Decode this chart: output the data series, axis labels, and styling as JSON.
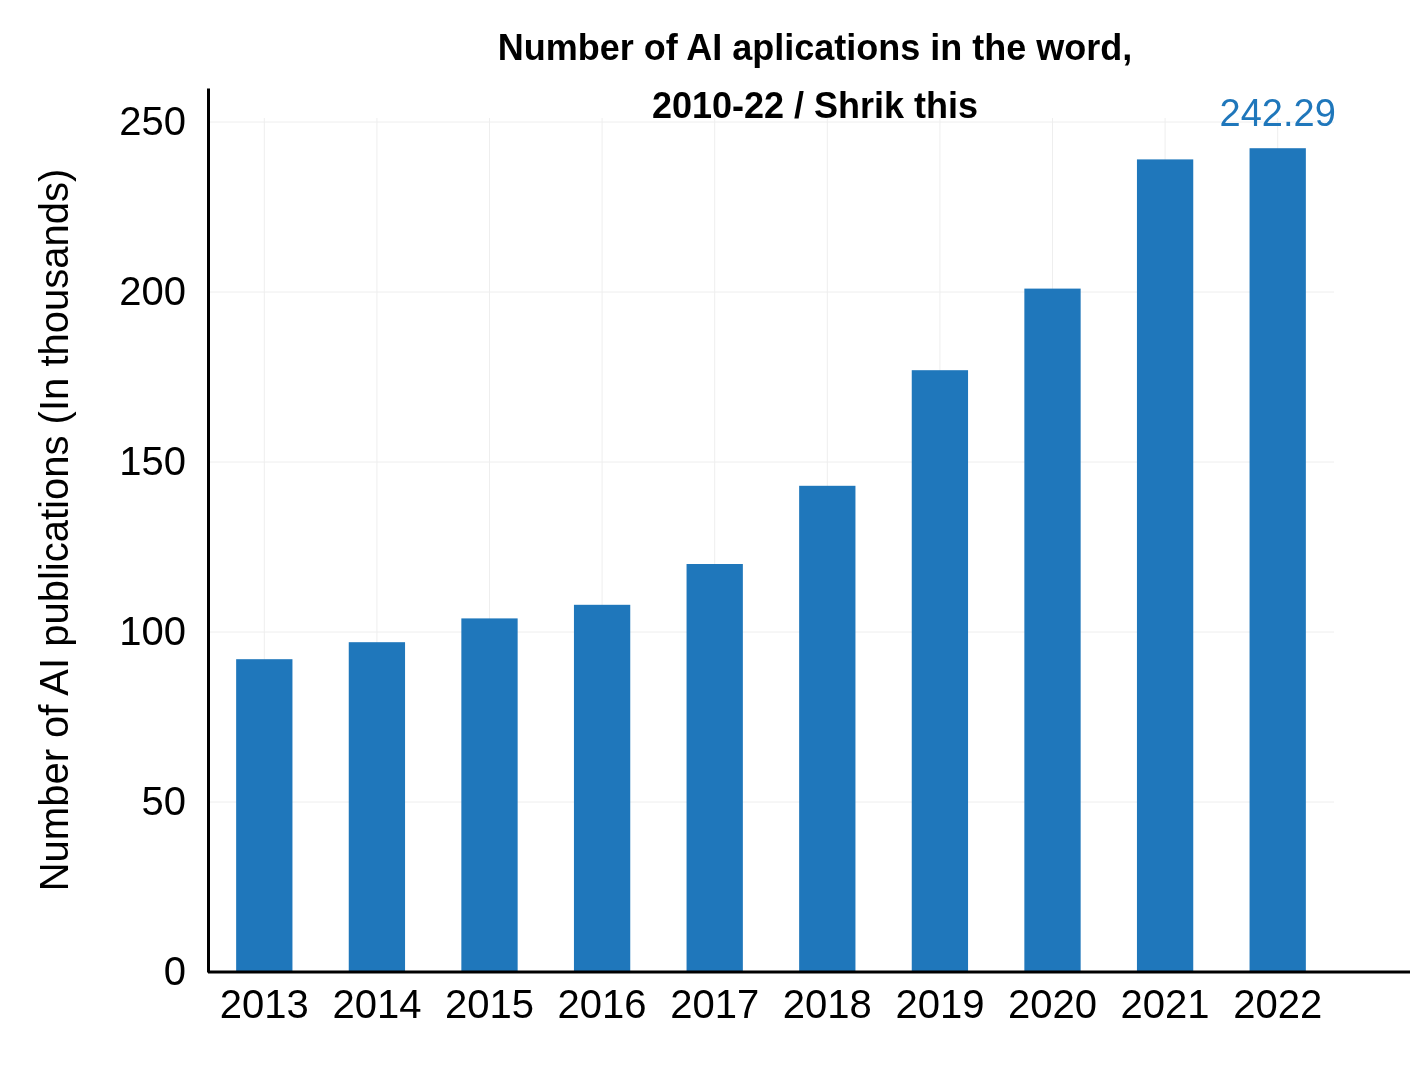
{
  "chart_data": {
    "type": "bar",
    "title": "Number of AI aplications in the word,\n2010-22 / Shrik this",
    "ylabel": "Number of AI publications (In thousands)",
    "categories": [
      "2013",
      "2014",
      "2015",
      "2016",
      "2017",
      "2018",
      "2019",
      "2020",
      "2021",
      "2022"
    ],
    "values": [
      92,
      97,
      104,
      108,
      120,
      143,
      177,
      201,
      239,
      242.29
    ],
    "value_labels": [
      null,
      null,
      null,
      null,
      null,
      null,
      null,
      null,
      null,
      "242.29"
    ],
    "color": "#1f77bb",
    "ylim": [
      0,
      260
    ],
    "yticks": [
      0,
      50,
      100,
      150,
      200,
      250
    ],
    "grid": true
  }
}
